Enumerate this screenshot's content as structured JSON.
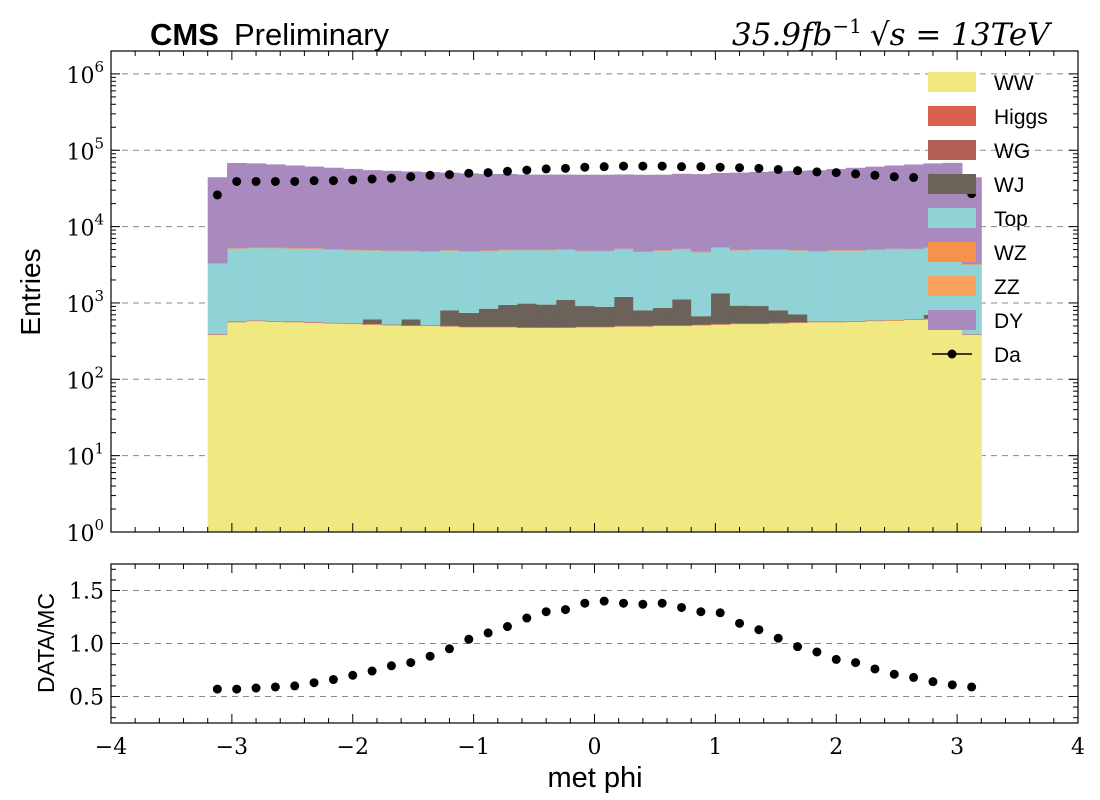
{
  "header": {
    "experiment": "CMS",
    "status": "Preliminary",
    "lumi_text": "35.9fb",
    "lumi_exp": "−1",
    "energy_text": "√s = 13TeV"
  },
  "chart_data": [
    {
      "type": "area",
      "name": "main",
      "ylabel": "Entries",
      "yscale": "log",
      "xlim": [
        -4,
        4
      ],
      "ylim_exponent": [
        0,
        6.3
      ],
      "grid": "horizontal dashed",
      "legend_placement": "top-right",
      "y_tick_labels": [
        "10^0",
        "10^1",
        "10^2",
        "10^3",
        "10^4",
        "10^5",
        "10^6"
      ],
      "bin_edges_range": [
        -3.2,
        3.2
      ],
      "n_bins": 40,
      "stack_order": [
        "WW",
        "Higgs",
        "WG",
        "WJ",
        "Top",
        "WZ",
        "ZZ",
        "DY"
      ],
      "series": [
        {
          "name": "WW",
          "color": "#f0e982",
          "values": [
            380,
            560,
            580,
            570,
            560,
            550,
            540,
            530,
            520,
            510,
            500,
            500,
            490,
            480,
            480,
            480,
            470,
            470,
            470,
            480,
            480,
            490,
            490,
            500,
            500,
            510,
            520,
            530,
            530,
            540,
            550,
            560,
            560,
            570,
            580,
            590,
            600,
            610,
            600,
            380
          ]
        },
        {
          "name": "Higgs",
          "color": "#d9614f",
          "values": [
            5,
            6,
            6,
            6,
            6,
            6,
            6,
            6,
            6,
            6,
            6,
            6,
            6,
            6,
            6,
            6,
            6,
            6,
            6,
            6,
            6,
            6,
            6,
            6,
            6,
            6,
            6,
            6,
            6,
            6,
            6,
            6,
            6,
            6,
            6,
            6,
            6,
            6,
            6,
            5
          ]
        },
        {
          "name": "WG",
          "color": "#b25f55",
          "values": [
            3,
            4,
            4,
            4,
            4,
            4,
            4,
            4,
            4,
            4,
            4,
            4,
            4,
            4,
            4,
            4,
            4,
            4,
            4,
            4,
            4,
            4,
            4,
            4,
            4,
            4,
            4,
            4,
            4,
            4,
            4,
            4,
            4,
            4,
            4,
            4,
            4,
            4,
            4,
            3
          ]
        },
        {
          "name": "WJ",
          "color": "#6b6259",
          "values": [
            0,
            0,
            0,
            0,
            0,
            0,
            0,
            0,
            80,
            0,
            100,
            0,
            300,
            250,
            350,
            450,
            500,
            470,
            620,
            420,
            400,
            700,
            300,
            350,
            600,
            150,
            800,
            380,
            370,
            250,
            150,
            0,
            0,
            0,
            0,
            0,
            0,
            80,
            0,
            0
          ]
        },
        {
          "name": "Top",
          "color": "#8fd3d7",
          "values": [
            2900,
            4600,
            4700,
            4700,
            4600,
            4600,
            4500,
            4400,
            4300,
            4300,
            4200,
            4200,
            4100,
            4000,
            4000,
            4000,
            4000,
            4000,
            3900,
            3900,
            3900,
            3900,
            3900,
            4000,
            4000,
            4000,
            4000,
            4000,
            4100,
            4200,
            4200,
            4200,
            4300,
            4300,
            4400,
            4500,
            4500,
            4600,
            4700,
            2800
          ]
        },
        {
          "name": "WZ",
          "color": "#f4934a",
          "values": [
            10,
            12,
            12,
            12,
            12,
            12,
            12,
            12,
            12,
            12,
            12,
            12,
            12,
            12,
            12,
            12,
            12,
            12,
            12,
            12,
            12,
            12,
            12,
            12,
            12,
            12,
            12,
            12,
            12,
            12,
            12,
            12,
            12,
            12,
            12,
            12,
            12,
            12,
            12,
            10
          ]
        },
        {
          "name": "ZZ",
          "color": "#f7a35c",
          "values": [
            8,
            10,
            10,
            10,
            10,
            10,
            10,
            10,
            10,
            10,
            10,
            10,
            10,
            10,
            10,
            10,
            10,
            10,
            10,
            10,
            10,
            10,
            10,
            10,
            10,
            10,
            10,
            10,
            10,
            10,
            10,
            10,
            10,
            10,
            10,
            10,
            10,
            10,
            10,
            8
          ]
        },
        {
          "name": "DY",
          "color": "#a98abf",
          "values": [
            41000,
            63000,
            62000,
            60000,
            58000,
            56000,
            54000,
            52000,
            50000,
            49000,
            48000,
            47000,
            46000,
            45000,
            44000,
            44000,
            43000,
            43000,
            43000,
            43000,
            43000,
            43000,
            43000,
            43000,
            44000,
            44000,
            45000,
            46000,
            47000,
            48000,
            49000,
            50000,
            52000,
            54000,
            56000,
            58000,
            60000,
            62000,
            63000,
            41000
          ]
        }
      ],
      "data_points": {
        "name": "Da",
        "x": [
          -3.12,
          -2.96,
          -2.8,
          -2.64,
          -2.48,
          -2.32,
          -2.16,
          -2.0,
          -1.84,
          -1.68,
          -1.52,
          -1.36,
          -1.2,
          -1.04,
          -0.88,
          -0.72,
          -0.56,
          -0.4,
          -0.24,
          -0.08,
          0.08,
          0.24,
          0.4,
          0.56,
          0.72,
          0.88,
          1.04,
          1.2,
          1.36,
          1.52,
          1.68,
          1.84,
          2.0,
          2.16,
          2.32,
          2.48,
          2.64,
          2.8,
          2.96,
          3.12
        ],
        "y": [
          26000,
          39000,
          39000,
          39000,
          39000,
          40000,
          40000,
          41000,
          42000,
          43000,
          45000,
          47000,
          48000,
          50000,
          51000,
          53000,
          55000,
          57000,
          58000,
          60000,
          61000,
          62000,
          62000,
          62000,
          61000,
          61000,
          60000,
          59000,
          58000,
          56000,
          54000,
          52000,
          51000,
          49000,
          47000,
          45000,
          44000,
          43000,
          42000,
          27000
        ]
      }
    },
    {
      "type": "scatter",
      "name": "ratio",
      "xlabel": "met phi",
      "ylabel": "DATA/MC",
      "xlim": [
        -4,
        4
      ],
      "ylim": [
        0.25,
        1.75
      ],
      "grid": "horizontal dashed",
      "x_ticks": [
        "−4",
        "−3",
        "−2",
        "−1",
        "0",
        "1",
        "2",
        "3",
        "4"
      ],
      "y_ticks": [
        "0.5",
        "1.0",
        "1.5"
      ],
      "x": [
        -3.12,
        -2.96,
        -2.8,
        -2.64,
        -2.48,
        -2.32,
        -2.16,
        -2.0,
        -1.84,
        -1.68,
        -1.52,
        -1.36,
        -1.2,
        -1.04,
        -0.88,
        -0.72,
        -0.56,
        -0.4,
        -0.24,
        -0.08,
        0.08,
        0.24,
        0.4,
        0.56,
        0.72,
        0.88,
        1.04,
        1.2,
        1.36,
        1.52,
        1.68,
        1.84,
        2.0,
        2.16,
        2.32,
        2.48,
        2.64,
        2.8,
        2.96,
        3.12
      ],
      "y": [
        0.57,
        0.57,
        0.58,
        0.59,
        0.6,
        0.63,
        0.66,
        0.7,
        0.74,
        0.79,
        0.82,
        0.88,
        0.95,
        1.04,
        1.1,
        1.16,
        1.24,
        1.3,
        1.32,
        1.38,
        1.4,
        1.38,
        1.37,
        1.38,
        1.34,
        1.3,
        1.29,
        1.19,
        1.13,
        1.05,
        0.97,
        0.92,
        0.85,
        0.82,
        0.76,
        0.71,
        0.68,
        0.64,
        0.61,
        0.59
      ]
    }
  ]
}
